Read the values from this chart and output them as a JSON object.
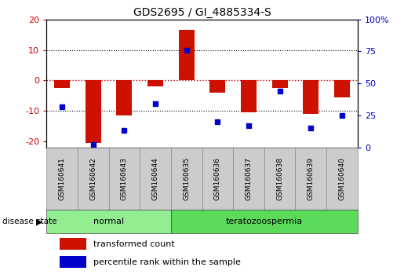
{
  "title": "GDS2695 / GI_4885334-S",
  "samples": [
    "GSM160641",
    "GSM160642",
    "GSM160643",
    "GSM160644",
    "GSM160635",
    "GSM160636",
    "GSM160637",
    "GSM160638",
    "GSM160639",
    "GSM160640"
  ],
  "transformed_count": [
    -2.5,
    -20.5,
    -11.5,
    -2.0,
    16.5,
    -4.0,
    -10.5,
    -2.5,
    -11.0,
    -5.5
  ],
  "percentile_rank_display": [
    32,
    2,
    13,
    34,
    76,
    20,
    17,
    44,
    15,
    25
  ],
  "disease_groups": [
    {
      "label": "normal",
      "indices": [
        0,
        1,
        2,
        3
      ],
      "color": "#90EE90"
    },
    {
      "label": "teratozoospermia",
      "indices": [
        4,
        5,
        6,
        7,
        8,
        9
      ],
      "color": "#5ADB5A"
    }
  ],
  "ylim_left": [
    -22,
    20
  ],
  "ylim_right": [
    0,
    100
  ],
  "yticks_left": [
    -20,
    -10,
    0,
    10,
    20
  ],
  "yticks_right": [
    0,
    25,
    50,
    75,
    100
  ],
  "bar_color": "#CC1100",
  "dot_color": "#0000CC",
  "zero_line_color": "#CC0000",
  "label_color_left": "#CC0000",
  "label_color_right": "#0000CC",
  "legend_items": [
    {
      "label": "transformed count",
      "color": "#CC1100"
    },
    {
      "label": "percentile rank within the sample",
      "color": "#0000CC"
    }
  ],
  "label_box_color": "#CCCCCC",
  "label_border_color": "#888888"
}
